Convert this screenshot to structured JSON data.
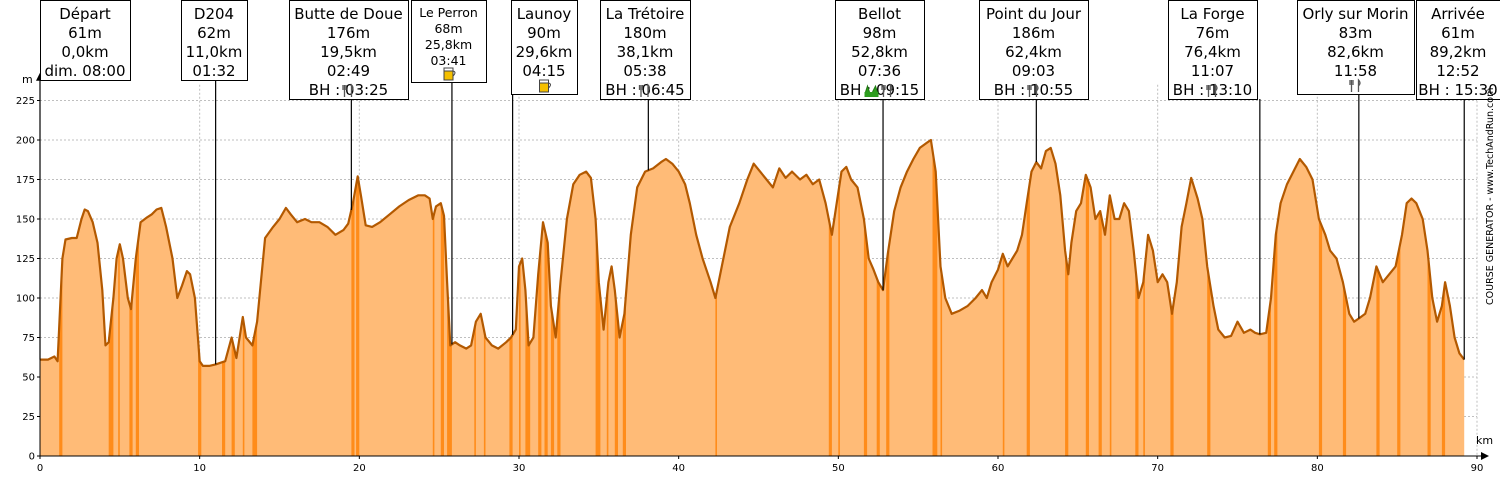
{
  "chart_data": {
    "type": "area",
    "xlabel": "km",
    "ylabel": "m",
    "xlim": [
      0,
      90
    ],
    "ylim": [
      0,
      235
    ],
    "x_ticks": [
      0,
      10,
      20,
      30,
      40,
      50,
      60,
      70,
      80,
      90
    ],
    "y_ticks": [
      0,
      25,
      50,
      75,
      100,
      125,
      150,
      175,
      200,
      225
    ],
    "grid": true,
    "colors": {
      "fill": "#ffbb77",
      "line": "#b35900",
      "dark_fill": "#ff8c1a"
    },
    "watermark": "COURSE GENERATOR - www.TechAndRun.com",
    "profile": [
      [
        0.0,
        61
      ],
      [
        0.5,
        61
      ],
      [
        0.9,
        63
      ],
      [
        1.1,
        60
      ],
      [
        1.4,
        125
      ],
      [
        1.6,
        137
      ],
      [
        2.0,
        138
      ],
      [
        2.3,
        138
      ],
      [
        2.6,
        150
      ],
      [
        2.8,
        156
      ],
      [
        3.0,
        155
      ],
      [
        3.3,
        148
      ],
      [
        3.6,
        135
      ],
      [
        3.9,
        105
      ],
      [
        4.1,
        70
      ],
      [
        4.3,
        72
      ],
      [
        4.6,
        100
      ],
      [
        4.8,
        125
      ],
      [
        5.0,
        134
      ],
      [
        5.2,
        125
      ],
      [
        5.5,
        100
      ],
      [
        5.7,
        93
      ],
      [
        6.0,
        125
      ],
      [
        6.3,
        148
      ],
      [
        6.7,
        151
      ],
      [
        7.0,
        153
      ],
      [
        7.3,
        156
      ],
      [
        7.6,
        157
      ],
      [
        7.9,
        145
      ],
      [
        8.3,
        125
      ],
      [
        8.6,
        100
      ],
      [
        8.9,
        108
      ],
      [
        9.2,
        117
      ],
      [
        9.4,
        115
      ],
      [
        9.7,
        100
      ],
      [
        10.0,
        60
      ],
      [
        10.2,
        57
      ],
      [
        10.6,
        57
      ],
      [
        11.0,
        58
      ],
      [
        11.6,
        60
      ],
      [
        12.0,
        75
      ],
      [
        12.3,
        62
      ],
      [
        12.7,
        88
      ],
      [
        12.9,
        75
      ],
      [
        13.3,
        70
      ],
      [
        13.6,
        85
      ],
      [
        14.1,
        138
      ],
      [
        14.6,
        145
      ],
      [
        15.0,
        150
      ],
      [
        15.4,
        157
      ],
      [
        15.7,
        153
      ],
      [
        16.1,
        148
      ],
      [
        16.6,
        150
      ],
      [
        17.0,
        148
      ],
      [
        17.5,
        148
      ],
      [
        18.0,
        145
      ],
      [
        18.5,
        140
      ],
      [
        19.0,
        143
      ],
      [
        19.3,
        147
      ],
      [
        19.6,
        160
      ],
      [
        19.9,
        177
      ],
      [
        20.1,
        165
      ],
      [
        20.4,
        146
      ],
      [
        20.8,
        145
      ],
      [
        21.3,
        148
      ],
      [
        21.9,
        153
      ],
      [
        22.5,
        158
      ],
      [
        23.1,
        162
      ],
      [
        23.7,
        165
      ],
      [
        24.1,
        165
      ],
      [
        24.4,
        163
      ],
      [
        24.6,
        150
      ],
      [
        24.8,
        158
      ],
      [
        25.1,
        160
      ],
      [
        25.3,
        152
      ],
      [
        25.5,
        110
      ],
      [
        25.7,
        70
      ],
      [
        26.0,
        72
      ],
      [
        26.3,
        70
      ],
      [
        26.7,
        68
      ],
      [
        27.0,
        70
      ],
      [
        27.3,
        85
      ],
      [
        27.6,
        90
      ],
      [
        27.9,
        75
      ],
      [
        28.3,
        70
      ],
      [
        28.7,
        68
      ],
      [
        29.2,
        72
      ],
      [
        29.5,
        75
      ],
      [
        29.8,
        80
      ],
      [
        30.0,
        120
      ],
      [
        30.2,
        125
      ],
      [
        30.4,
        105
      ],
      [
        30.6,
        70
      ],
      [
        30.9,
        75
      ],
      [
        31.2,
        115
      ],
      [
        31.5,
        148
      ],
      [
        31.8,
        135
      ],
      [
        32.0,
        95
      ],
      [
        32.3,
        75
      ],
      [
        32.6,
        110
      ],
      [
        33.0,
        150
      ],
      [
        33.4,
        172
      ],
      [
        33.8,
        178
      ],
      [
        34.2,
        180
      ],
      [
        34.5,
        176
      ],
      [
        34.8,
        150
      ],
      [
        35.0,
        110
      ],
      [
        35.3,
        80
      ],
      [
        35.6,
        110
      ],
      [
        35.8,
        120
      ],
      [
        36.0,
        105
      ],
      [
        36.3,
        75
      ],
      [
        36.6,
        90
      ],
      [
        37.0,
        140
      ],
      [
        37.4,
        170
      ],
      [
        37.9,
        180
      ],
      [
        38.4,
        182
      ],
      [
        38.9,
        186
      ],
      [
        39.2,
        188
      ],
      [
        39.6,
        185
      ],
      [
        40.0,
        180
      ],
      [
        40.4,
        172
      ],
      [
        40.7,
        160
      ],
      [
        41.1,
        140
      ],
      [
        41.5,
        125
      ],
      [
        42.0,
        110
      ],
      [
        42.3,
        100
      ],
      [
        42.7,
        120
      ],
      [
        43.2,
        145
      ],
      [
        43.8,
        160
      ],
      [
        44.3,
        175
      ],
      [
        44.7,
        185
      ],
      [
        45.1,
        180
      ],
      [
        45.5,
        175
      ],
      [
        45.9,
        170
      ],
      [
        46.3,
        182
      ],
      [
        46.7,
        176
      ],
      [
        47.1,
        180
      ],
      [
        47.6,
        175
      ],
      [
        48.0,
        178
      ],
      [
        48.4,
        172
      ],
      [
        48.8,
        175
      ],
      [
        49.2,
        160
      ],
      [
        49.6,
        140
      ],
      [
        49.9,
        160
      ],
      [
        50.2,
        180
      ],
      [
        50.5,
        183
      ],
      [
        50.8,
        175
      ],
      [
        51.2,
        170
      ],
      [
        51.6,
        150
      ],
      [
        51.9,
        125
      ],
      [
        52.2,
        118
      ],
      [
        52.5,
        110
      ],
      [
        52.8,
        105
      ],
      [
        53.1,
        128
      ],
      [
        53.5,
        155
      ],
      [
        53.9,
        170
      ],
      [
        54.3,
        180
      ],
      [
        54.7,
        188
      ],
      [
        55.1,
        195
      ],
      [
        55.5,
        198
      ],
      [
        55.8,
        200
      ],
      [
        56.1,
        180
      ],
      [
        56.4,
        120
      ],
      [
        56.7,
        100
      ],
      [
        57.1,
        90
      ],
      [
        57.6,
        92
      ],
      [
        58.1,
        95
      ],
      [
        58.6,
        100
      ],
      [
        59.0,
        105
      ],
      [
        59.3,
        100
      ],
      [
        59.6,
        110
      ],
      [
        60.0,
        118
      ],
      [
        60.3,
        128
      ],
      [
        60.6,
        120
      ],
      [
        60.9,
        125
      ],
      [
        61.2,
        130
      ],
      [
        61.5,
        140
      ],
      [
        61.8,
        160
      ],
      [
        62.1,
        180
      ],
      [
        62.4,
        186
      ],
      [
        62.7,
        182
      ],
      [
        63.0,
        193
      ],
      [
        63.3,
        195
      ],
      [
        63.6,
        185
      ],
      [
        63.9,
        165
      ],
      [
        64.2,
        130
      ],
      [
        64.4,
        115
      ],
      [
        64.6,
        135
      ],
      [
        64.9,
        155
      ],
      [
        65.2,
        160
      ],
      [
        65.5,
        178
      ],
      [
        65.8,
        170
      ],
      [
        66.1,
        150
      ],
      [
        66.4,
        155
      ],
      [
        66.7,
        140
      ],
      [
        67.0,
        165
      ],
      [
        67.3,
        150
      ],
      [
        67.6,
        150
      ],
      [
        67.9,
        160
      ],
      [
        68.2,
        155
      ],
      [
        68.5,
        130
      ],
      [
        68.8,
        100
      ],
      [
        69.1,
        110
      ],
      [
        69.4,
        140
      ],
      [
        69.7,
        130
      ],
      [
        70.0,
        110
      ],
      [
        70.3,
        115
      ],
      [
        70.6,
        110
      ],
      [
        70.9,
        90
      ],
      [
        71.2,
        110
      ],
      [
        71.5,
        145
      ],
      [
        71.8,
        160
      ],
      [
        72.1,
        176
      ],
      [
        72.5,
        163
      ],
      [
        72.8,
        150
      ],
      [
        73.1,
        120
      ],
      [
        73.5,
        95
      ],
      [
        73.8,
        80
      ],
      [
        74.2,
        75
      ],
      [
        74.6,
        76
      ],
      [
        75.0,
        85
      ],
      [
        75.4,
        78
      ],
      [
        75.8,
        80
      ],
      [
        76.1,
        78
      ],
      [
        76.4,
        77
      ],
      [
        76.8,
        78
      ],
      [
        77.1,
        100
      ],
      [
        77.4,
        140
      ],
      [
        77.7,
        160
      ],
      [
        78.1,
        172
      ],
      [
        78.5,
        180
      ],
      [
        78.9,
        188
      ],
      [
        79.3,
        183
      ],
      [
        79.7,
        175
      ],
      [
        80.1,
        150
      ],
      [
        80.5,
        140
      ],
      [
        80.8,
        130
      ],
      [
        81.2,
        125
      ],
      [
        81.6,
        110
      ],
      [
        82.0,
        90
      ],
      [
        82.3,
        85
      ],
      [
        82.6,
        87
      ],
      [
        83.0,
        90
      ],
      [
        83.3,
        100
      ],
      [
        83.7,
        120
      ],
      [
        84.1,
        110
      ],
      [
        84.5,
        115
      ],
      [
        84.9,
        120
      ],
      [
        85.3,
        140
      ],
      [
        85.6,
        160
      ],
      [
        85.9,
        163
      ],
      [
        86.2,
        160
      ],
      [
        86.6,
        150
      ],
      [
        86.9,
        130
      ],
      [
        87.2,
        100
      ],
      [
        87.5,
        85
      ],
      [
        87.8,
        95
      ],
      [
        88.0,
        110
      ],
      [
        88.3,
        95
      ],
      [
        88.6,
        75
      ],
      [
        88.9,
        65
      ],
      [
        89.2,
        61
      ]
    ],
    "waypoints": [
      {
        "km": 0.0,
        "lines": [
          "Départ",
          "61m",
          "0,0km",
          "dim. 08:00"
        ],
        "icons": []
      },
      {
        "km": 11.0,
        "lines": [
          "D204",
          "62m",
          "11,0km",
          "01:32"
        ],
        "icons": []
      },
      {
        "km": 19.5,
        "lines": [
          "Butte de Doue",
          "176m",
          "19,5km",
          "02:49",
          "BH : 03:25"
        ],
        "icons": [
          "cutlery-icon"
        ]
      },
      {
        "km": 25.8,
        "lines": [
          "Le Perron",
          "68m",
          "25,8km",
          "03:41"
        ],
        "icons": [
          "beer-icon"
        ],
        "small": true
      },
      {
        "km": 29.6,
        "lines": [
          "Launoy",
          "90m",
          "29,6km",
          "04:15"
        ],
        "icons": [
          "beer-icon"
        ]
      },
      {
        "km": 38.1,
        "lines": [
          "La Trétoire",
          "180m",
          "38,1km",
          "05:38",
          "BH : 06:45"
        ],
        "icons": [
          "cutlery-icon"
        ]
      },
      {
        "km": 52.8,
        "lines": [
          "Bellot",
          "98m",
          "52,8km",
          "07:36",
          "BH : 09:15"
        ],
        "icons": [
          "grass-icon",
          "cutlery-icon"
        ]
      },
      {
        "km": 62.4,
        "lines": [
          "Point du Jour",
          "186m",
          "62,4km",
          "09:03",
          "BH : 10:55"
        ],
        "icons": [
          "cutlery-icon"
        ]
      },
      {
        "km": 76.4,
        "lines": [
          "La Forge",
          "76m",
          "76,4km",
          "11:07",
          "BH : 13:10"
        ],
        "icons": [
          "cutlery-icon"
        ]
      },
      {
        "km": 82.6,
        "lines": [
          "Orly sur Morin",
          "83m",
          "82,6km",
          "11:58"
        ],
        "icons": [
          "cutlery-icon"
        ]
      },
      {
        "km": 89.2,
        "lines": [
          "Arrivée",
          "61m",
          "89,2km",
          "12:52",
          "BH : 15:30"
        ],
        "icons": []
      }
    ],
    "steep_segments": [
      [
        1.2,
        1.4
      ],
      [
        4.3,
        4.6
      ],
      [
        4.9,
        5.0
      ],
      [
        5.6,
        5.8
      ],
      [
        6.0,
        6.2
      ],
      [
        9.9,
        10.1
      ],
      [
        11.4,
        11.6
      ],
      [
        12.0,
        12.2
      ],
      [
        12.7,
        12.8
      ],
      [
        13.3,
        13.6
      ],
      [
        19.5,
        19.7
      ],
      [
        19.8,
        20.0
      ],
      [
        24.6,
        24.7
      ],
      [
        25.1,
        25.3
      ],
      [
        25.5,
        25.8
      ],
      [
        27.2,
        27.3
      ],
      [
        27.8,
        27.9
      ],
      [
        29.4,
        29.6
      ],
      [
        30.0,
        30.1
      ],
      [
        30.4,
        30.7
      ],
      [
        31.2,
        31.4
      ],
      [
        31.6,
        31.8
      ],
      [
        32.0,
        32.2
      ],
      [
        32.4,
        32.6
      ],
      [
        34.8,
        35.1
      ],
      [
        35.5,
        35.6
      ],
      [
        36.0,
        36.2
      ],
      [
        36.5,
        36.7
      ],
      [
        42.3,
        42.4
      ],
      [
        49.4,
        49.6
      ],
      [
        50.0,
        50.1
      ],
      [
        51.6,
        51.8
      ],
      [
        52.4,
        52.6
      ],
      [
        53.0,
        53.2
      ],
      [
        55.9,
        56.2
      ],
      [
        56.4,
        56.5
      ],
      [
        60.3,
        60.4
      ],
      [
        61.8,
        62.0
      ],
      [
        64.2,
        64.4
      ],
      [
        65.5,
        65.7
      ],
      [
        66.3,
        66.5
      ],
      [
        67.0,
        67.1
      ],
      [
        68.6,
        68.8
      ],
      [
        69.1,
        69.2
      ],
      [
        70.8,
        71.0
      ],
      [
        73.1,
        73.3
      ],
      [
        76.9,
        77.1
      ],
      [
        77.3,
        77.5
      ],
      [
        80.1,
        80.3
      ],
      [
        81.6,
        81.8
      ],
      [
        83.7,
        83.9
      ],
      [
        85.0,
        85.2
      ],
      [
        86.9,
        87.1
      ],
      [
        87.8,
        88.0
      ]
    ]
  }
}
